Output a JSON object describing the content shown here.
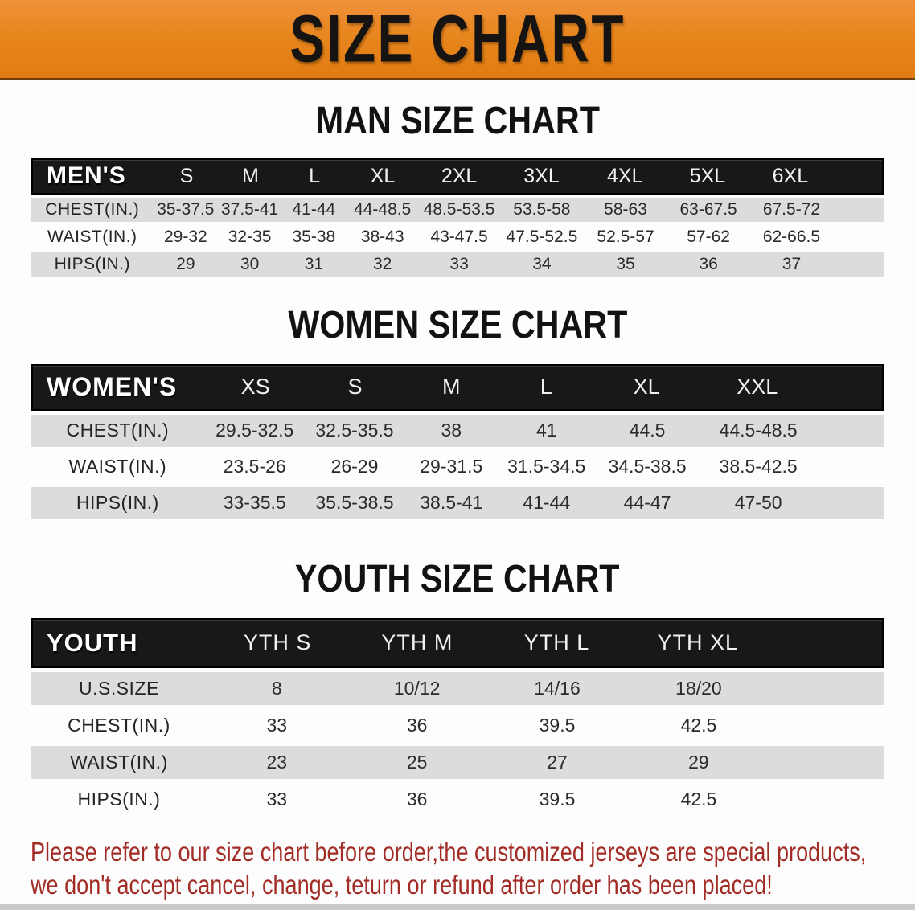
{
  "banner": {
    "title": "SIZE CHART"
  },
  "colors": {
    "banner_orange": "#E8861E",
    "header_black": "#181818",
    "row_gray": "#DCDCDC",
    "footer_red": "#A22D26"
  },
  "sections": [
    {
      "title": "MAN SIZE CHART",
      "table": {
        "header_label": "MEN'S",
        "columns": [
          "S",
          "M",
          "L",
          "XL",
          "2XL",
          "3XL",
          "4XL",
          "5XL",
          "6XL"
        ],
        "rows": [
          {
            "label": "CHEST(IN.)",
            "values": [
              "35-37.5",
              "37.5-41",
              "41-44",
              "44-48.5",
              "48.5-53.5",
              "53.5-58",
              "58-63",
              "63-67.5",
              "67.5-72"
            ]
          },
          {
            "label": "WAIST(IN.)",
            "values": [
              "29-32",
              "32-35",
              "35-38",
              "38-43",
              "43-47.5",
              "47.5-52.5",
              "52.5-57",
              "57-62",
              "62-66.5"
            ]
          },
          {
            "label": "HIPS(IN.)",
            "values": [
              "29",
              "30",
              "31",
              "32",
              "33",
              "34",
              "35",
              "36",
              "37"
            ]
          }
        ]
      }
    },
    {
      "title": "WOMEN SIZE CHART",
      "table": {
        "header_label": "WOMEN'S",
        "columns": [
          "XS",
          "S",
          "M",
          "L",
          "XL",
          "XXL"
        ],
        "rows": [
          {
            "label": "CHEST(IN.)",
            "values": [
              "29.5-32.5",
              "32.5-35.5",
              "38",
              "41",
              "44.5",
              "44.5-48.5"
            ]
          },
          {
            "label": "WAIST(IN.)",
            "values": [
              "23.5-26",
              "26-29",
              "29-31.5",
              "31.5-34.5",
              "34.5-38.5",
              "38.5-42.5"
            ]
          },
          {
            "label": "HIPS(IN.)",
            "values": [
              "33-35.5",
              "35.5-38.5",
              "38.5-41",
              "41-44",
              "44-47",
              "47-50"
            ]
          }
        ]
      }
    },
    {
      "title": "YOUTH SIZE CHART",
      "table": {
        "header_label": "YOUTH",
        "columns": [
          "YTH S",
          "YTH M",
          "YTH L",
          "YTH XL"
        ],
        "rows": [
          {
            "label": "U.S.SIZE",
            "values": [
              "8",
              "10/12",
              "14/16",
              "18/20"
            ]
          },
          {
            "label": "CHEST(IN.)",
            "values": [
              "33",
              "36",
              "39.5",
              "42.5"
            ]
          },
          {
            "label": "WAIST(IN.)",
            "values": [
              "23",
              "25",
              "27",
              "29"
            ]
          },
          {
            "label": "HIPS(IN.)",
            "values": [
              "33",
              "36",
              "39.5",
              "42.5"
            ]
          }
        ]
      }
    }
  ],
  "footer": {
    "lines": [
      "Please refer to our size chart before order,the customized jerseys are special products,",
      "we don't accept cancel, change, teturn or refund after order has been placed!"
    ]
  }
}
